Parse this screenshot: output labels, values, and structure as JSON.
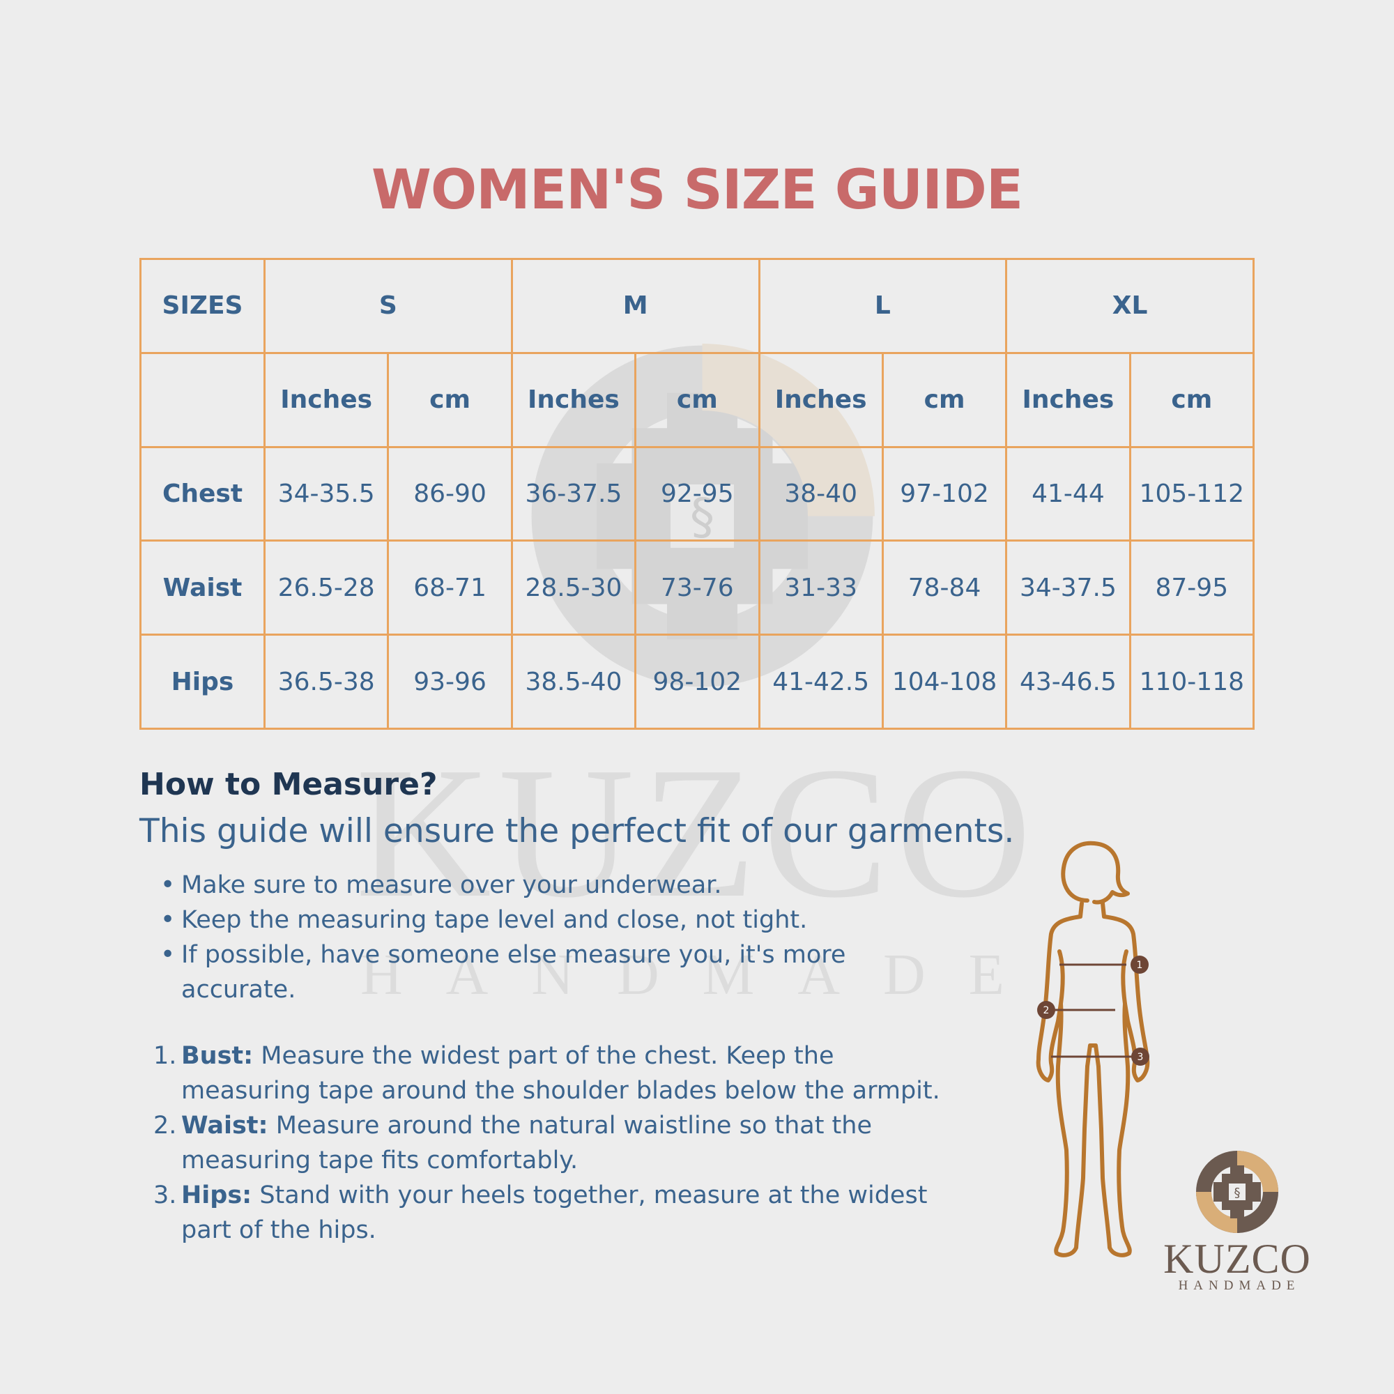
{
  "title": "WOMEN'S SIZE GUIDE",
  "table": {
    "header_label": "SIZES",
    "sizes": [
      "S",
      "M",
      "L",
      "XL"
    ],
    "unit_inches": "Inches",
    "unit_cm": "cm",
    "rows": [
      {
        "label": "Chest",
        "values": [
          "34-35.5",
          "86-90",
          "36-37.5",
          "92-95",
          "38-40",
          "97-102",
          "41-44",
          "105-112"
        ]
      },
      {
        "label": "Waist",
        "values": [
          "26.5-28",
          "68-71",
          "28.5-30",
          "73-76",
          "31-33",
          "78-84",
          "34-37.5",
          "87-95"
        ]
      },
      {
        "label": "Hips",
        "values": [
          "36.5-38",
          "93-96",
          "38.5-40",
          "98-102",
          "41-42.5",
          "104-108",
          "43-46.5",
          "110-118"
        ]
      }
    ]
  },
  "how": {
    "title": "How to Measure?",
    "subtitle": "This guide will ensure the perfect fit of our garments.",
    "tips": [
      "Make sure to measure over your underwear.",
      "Keep the measuring tape level and close, not tight.",
      "If possible, have someone else measure you, it's more accurate."
    ],
    "steps": [
      {
        "num": "1.",
        "term": "Bust:",
        "text": "Measure the widest part of the chest. Keep the measuring tape around the shoulder blades below the armpit."
      },
      {
        "num": "2.",
        "term": "Waist:",
        "text": "Measure around the natural waistline so that the measuring tape fits comfortably."
      },
      {
        "num": "3.",
        "term": "Hips:",
        "text": "Stand with your heels together, measure at the widest part of the hips."
      }
    ]
  },
  "figure_markers": [
    "1",
    "2",
    "3"
  ],
  "brand": {
    "name": "KUZCO",
    "tagline": "HANDMADE"
  },
  "colors": {
    "title": "#c86a6a",
    "text": "#3a638d",
    "heading": "#1f3652",
    "border": "#e9a45e",
    "figure": "#b8762e",
    "marker": "#6e4636"
  }
}
